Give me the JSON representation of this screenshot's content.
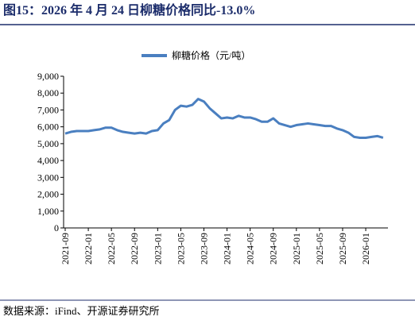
{
  "chart_data": {
    "type": "line",
    "title": "图15：2026 年 4 月 24 日柳糖价格同比-13.0%",
    "source": "数据来源：iFind、开源证券研究所",
    "categories": [
      "2021-09",
      null,
      null,
      null,
      "2022-01",
      null,
      null,
      null,
      "2022-05",
      null,
      null,
      null,
      "2022-09",
      null,
      null,
      null,
      "2023-01",
      null,
      null,
      null,
      "2023-05",
      null,
      null,
      null,
      "2023-09",
      null,
      null,
      null,
      "2024-01",
      null,
      null,
      null,
      "2024-05",
      null,
      null,
      null,
      "2024-09",
      null,
      null,
      null,
      "2025-01",
      null,
      null,
      null,
      "2025-05",
      null,
      null,
      null,
      "2025-09",
      null,
      null,
      null,
      "2026-01",
      null,
      null,
      null
    ],
    "series": [
      {
        "name": "柳糖价格（元/吨）",
        "color": "#4a7fc0",
        "values": [
          5600,
          5700,
          5750,
          5750,
          5750,
          5800,
          5850,
          5950,
          5950,
          5800,
          5700,
          5650,
          5600,
          5650,
          5600,
          5750,
          5800,
          6200,
          6400,
          7000,
          7250,
          7200,
          7300,
          7650,
          7500,
          7100,
          6800,
          6500,
          6550,
          6500,
          6650,
          6550,
          6550,
          6450,
          6300,
          6300,
          6500,
          6200,
          6100,
          6000,
          6100,
          6150,
          6200,
          6150,
          6100,
          6050,
          6050,
          5900,
          5800,
          5650,
          5400,
          5350,
          5350,
          5400,
          5450,
          5350
        ]
      }
    ],
    "ylim": [
      0,
      9000
    ],
    "yticks": [
      0,
      {
        "value": 1000,
        "label": "1,000"
      },
      {
        "value": 2000,
        "label": "2,000"
      },
      {
        "value": 3000,
        "label": "3,000"
      },
      {
        "value": 4000,
        "label": "4,000"
      },
      {
        "value": 5000,
        "label": "5,000"
      },
      {
        "value": 6000,
        "label": "6,000"
      },
      {
        "value": 7000,
        "label": "7,000"
      },
      {
        "value": 8000,
        "label": "8,000"
      },
      {
        "value": 9000,
        "label": "9,000"
      }
    ],
    "grid": false,
    "legend": "top"
  }
}
